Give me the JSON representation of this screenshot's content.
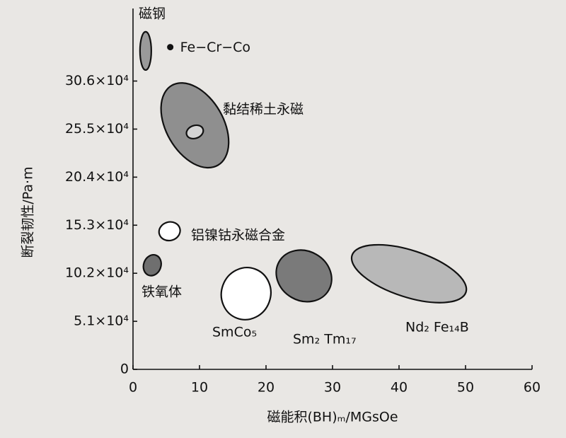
{
  "chart_data": {
    "type": "region",
    "xlabel": "磁能积(BH)ₘ/MGsOe",
    "ylabel": "断裂韧性/Pa·m",
    "xlim": [
      0,
      60
    ],
    "ylim": [
      0,
      383000
    ],
    "xticks": [
      0,
      10,
      20,
      30,
      40,
      50,
      60
    ],
    "yticks": [
      0,
      {
        "value": 51000,
        "label": "5.1×10⁴"
      },
      {
        "value": 102000,
        "label": "10.2×10⁴"
      },
      {
        "value": 153000,
        "label": "15.3×10⁴"
      },
      {
        "value": 204000,
        "label": "20.4×10⁴"
      },
      {
        "value": 255000,
        "label": "25.5×10⁴"
      },
      {
        "value": 306000,
        "label": "30.6×10⁴"
      }
    ],
    "regions": [
      {
        "name": "磁钢",
        "x": 1.9,
        "y": 338000,
        "rx": 0.85,
        "ry": 20300,
        "angle": 0,
        "color": "#9a9a9a"
      },
      {
        "name": "黏结稀土永磁",
        "x": 9.3,
        "y": 259000,
        "rx": 4.3,
        "ry": 48900,
        "angle": -30,
        "color": "#8f8f8f"
      },
      {
        "name": "铝镍钴永磁合金",
        "x": 5.5,
        "y": 146600,
        "rx": 1.6,
        "ry": 9800,
        "angle": -15,
        "color": "#ffffff"
      },
      {
        "name": "铁氧体",
        "x": 2.9,
        "y": 110500,
        "rx": 1.3,
        "ry": 11300,
        "angle": 20,
        "color": "#6f6f6f"
      },
      {
        "name": "SmCo₅",
        "x": 17.0,
        "y": 80400,
        "rx": 3.7,
        "ry": 27800,
        "angle": 20,
        "color": "#ffffff"
      },
      {
        "name": "Sm₂ Tm₁₇",
        "x": 25.7,
        "y": 99200,
        "rx": 4.3,
        "ry": 26300,
        "angle": 30,
        "color": "#7a7a7a"
      },
      {
        "name": "Nd₂ Fe₁₄B",
        "x": 41.5,
        "y": 101500,
        "rx": 9.0,
        "ry": 24800,
        "angle": 18,
        "color": "#b8b8b8"
      }
    ],
    "inner_regions": [
      {
        "x": 9.3,
        "y": 252000,
        "rx": 1.3,
        "ry": 6800,
        "angle": -20,
        "color": "#d4d4d4"
      }
    ],
    "points": [
      {
        "name": "Fe−Cr−Co",
        "x": 5.6,
        "y": 342000,
        "color": "#111111"
      }
    ]
  }
}
